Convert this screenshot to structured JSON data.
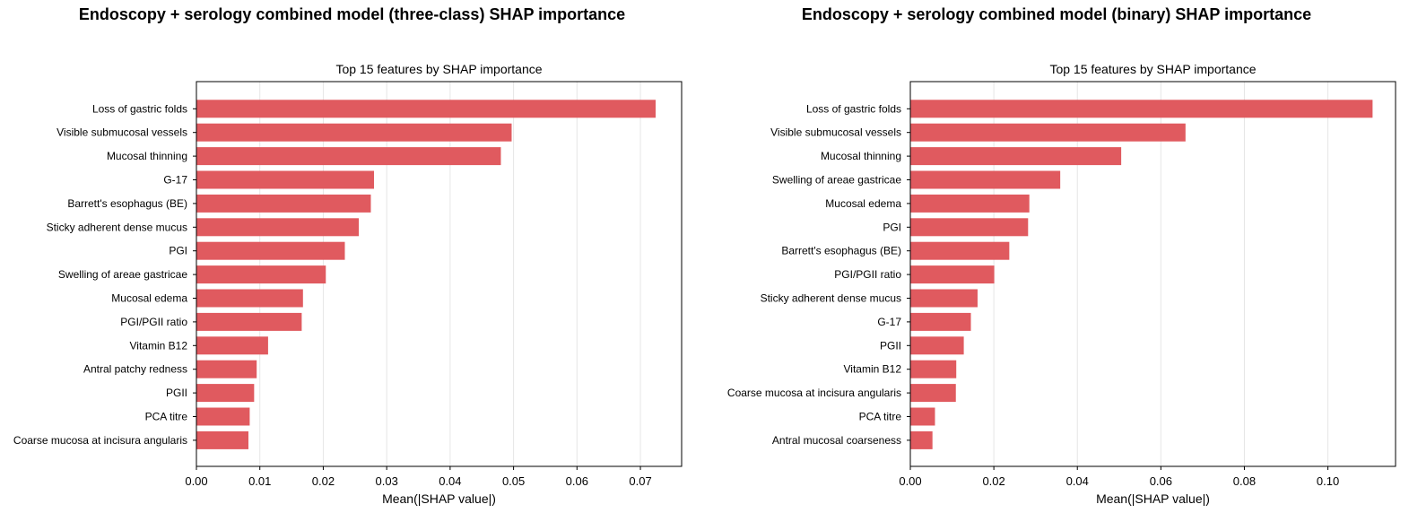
{
  "colors": {
    "bar": "#e05a5f",
    "grid": "#e6e6e6",
    "axis": "#000000"
  },
  "chart_data": [
    {
      "type": "bar",
      "orientation": "horizontal",
      "suptitle": "Endoscopy + serology combined model (three-class) SHAP importance",
      "title": "Top 15 features by SHAP importance",
      "xlabel": "Mean(|SHAP value|)",
      "ylabel": "",
      "xlim": [
        0,
        0.0765
      ],
      "xticks": [
        "0.00",
        "0.01",
        "0.02",
        "0.03",
        "0.04",
        "0.05",
        "0.06",
        "0.07"
      ],
      "grid": "vertical",
      "categories": [
        "Loss of gastric folds",
        "Visible submucosal vessels",
        "Mucosal thinning",
        "G-17",
        "Barrett's esophagus (BE)",
        "Sticky adherent dense mucus",
        "PGI",
        "Swelling of areae gastricae",
        "Mucosal edema",
        "PGI/PGII ratio",
        "Vitamin B12",
        "Antral patchy redness",
        "PGII",
        "PCA titre",
        "Coarse mucosa at incisura angularis"
      ],
      "values": [
        0.0724,
        0.0497,
        0.048,
        0.028,
        0.0275,
        0.0256,
        0.0234,
        0.0204,
        0.0168,
        0.0166,
        0.0113,
        0.0095,
        0.0091,
        0.0084,
        0.0082
      ]
    },
    {
      "type": "bar",
      "orientation": "horizontal",
      "suptitle": "Endoscopy + serology combined model (binary) SHAP importance",
      "title": "Top 15 features by SHAP importance",
      "xlabel": "Mean(|SHAP value|)",
      "ylabel": "",
      "xlim": [
        0,
        0.1162
      ],
      "xticks": [
        "0.00",
        "0.02",
        "0.04",
        "0.06",
        "0.08",
        "0.10"
      ],
      "grid": "vertical",
      "categories": [
        "Loss of gastric folds",
        "Visible submucosal vessels",
        "Mucosal thinning",
        "Swelling of areae gastricae",
        "Mucosal edema",
        "PGI",
        "Barrett's esophagus (BE)",
        "PGI/PGII ratio",
        "Sticky adherent dense mucus",
        "G-17",
        "PGII",
        "Vitamin B12",
        "Coarse mucosa at incisura angularis",
        "PCA titre",
        "Antral mucosal coarseness"
      ],
      "values": [
        0.1107,
        0.0659,
        0.0505,
        0.0359,
        0.0285,
        0.0282,
        0.0237,
        0.0201,
        0.0161,
        0.0145,
        0.0128,
        0.011,
        0.0109,
        0.0059,
        0.0053
      ]
    }
  ]
}
